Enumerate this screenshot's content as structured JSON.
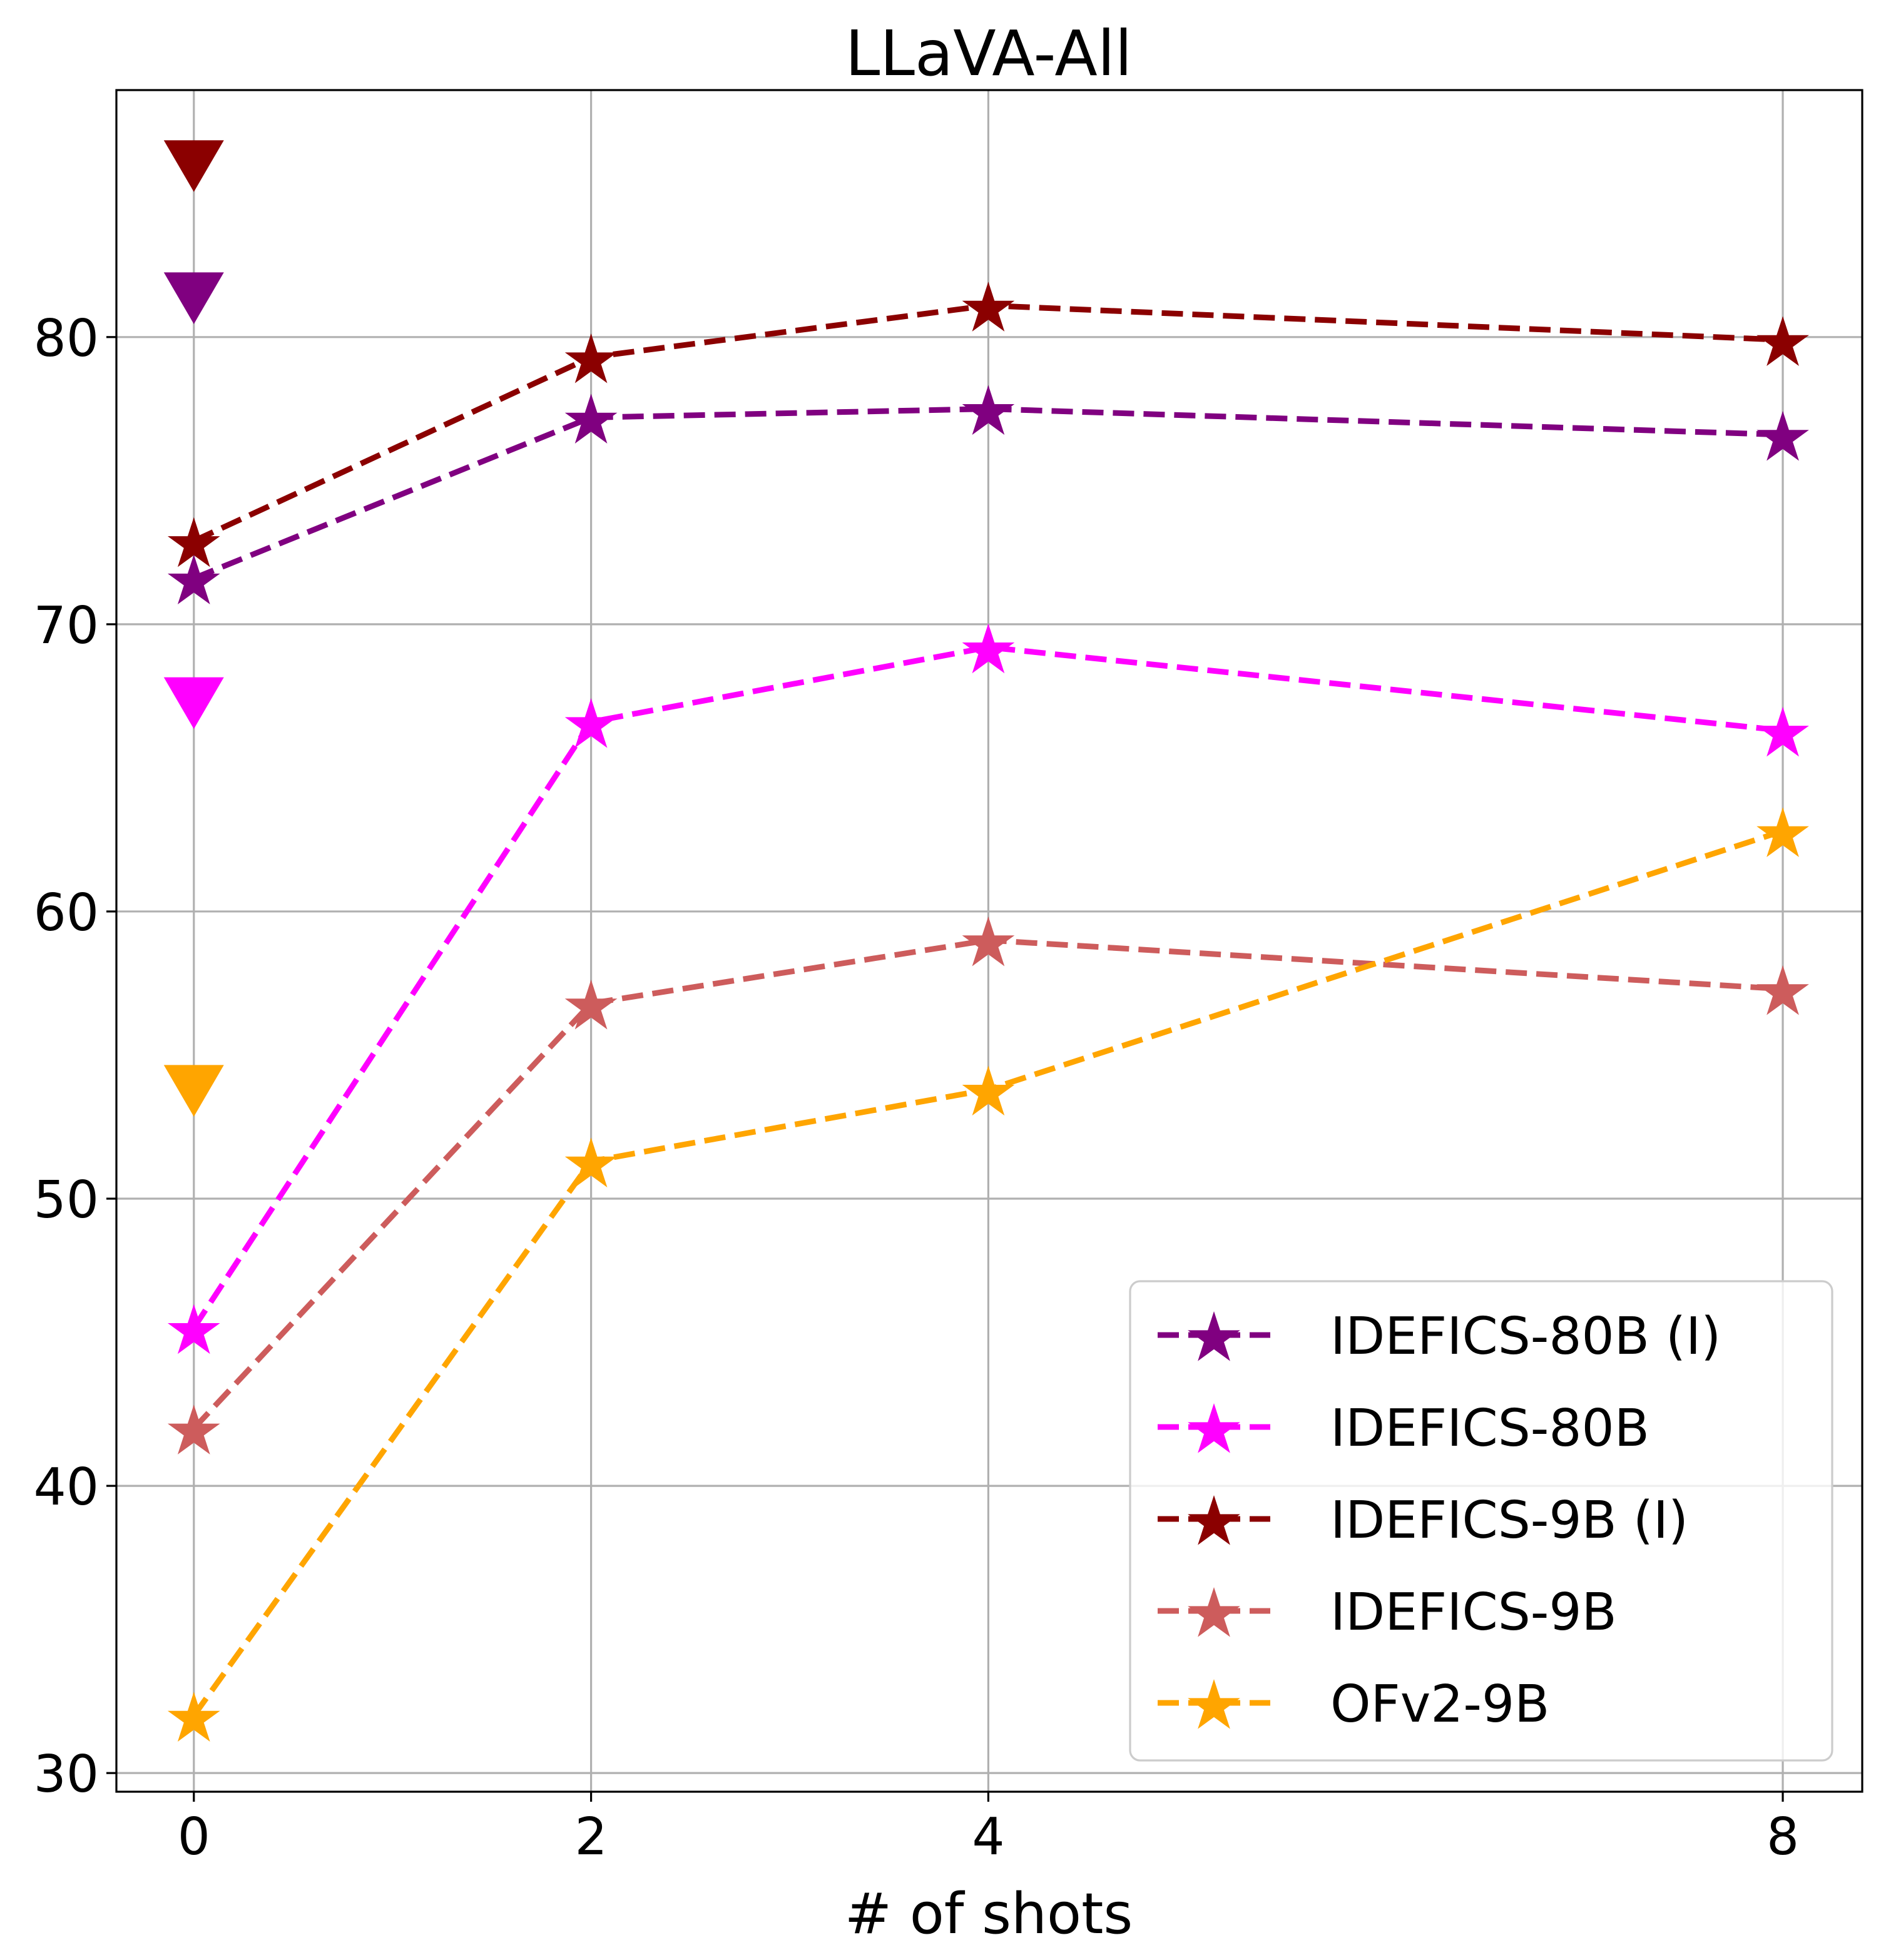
{
  "chart_data": {
    "type": "line",
    "title": "LLaVA-All",
    "xlabel": "# of shots",
    "ylabel": "",
    "x": [
      0,
      2,
      4,
      8
    ],
    "xticks": [
      0,
      2,
      4,
      8
    ],
    "xtick_labels": [
      "0",
      "2",
      "4",
      "8"
    ],
    "yticks": [
      30,
      40,
      50,
      60,
      70,
      80
    ],
    "ytick_labels": [
      "30",
      "40",
      "50",
      "60",
      "70",
      "80"
    ],
    "xlim": [
      -0.39,
      8.4
    ],
    "ylim": [
      29.35,
      88.6
    ],
    "grid": true,
    "legend_position": "lower-right",
    "series": [
      {
        "name": "IDEFICS-80B (I)",
        "color": "#800080",
        "marker": "star",
        "linestyle": "dashed",
        "values": [
          71.6,
          77.2,
          77.5,
          76.6
        ]
      },
      {
        "name": "IDEFICS-80B",
        "color": "#FF00FF",
        "marker": "star",
        "linestyle": "dashed",
        "values": [
          45.5,
          66.6,
          69.2,
          66.3
        ]
      },
      {
        "name": "IDEFICS-9B (I)",
        "color": "#8B0000",
        "marker": "star",
        "linestyle": "dashed",
        "values": [
          72.9,
          79.3,
          81.1,
          79.9
        ]
      },
      {
        "name": "IDEFICS-9B",
        "color": "#CD5C5C",
        "marker": "star",
        "linestyle": "dashed",
        "values": [
          42.0,
          56.8,
          59.0,
          57.3
        ]
      },
      {
        "name": "OFv2-9B",
        "color": "#FFA500",
        "marker": "star",
        "linestyle": "dashed",
        "values": [
          32.0,
          51.3,
          53.8,
          62.8
        ]
      }
    ],
    "extra_points": [
      {
        "series": "IDEFICS-9B (I)",
        "color": "#8B0000",
        "marker": "triangle-down",
        "x": 0,
        "y": 86.1
      },
      {
        "series": "IDEFICS-80B (I)",
        "color": "#800080",
        "marker": "triangle-down",
        "x": 0,
        "y": 81.5
      },
      {
        "series": "IDEFICS-80B",
        "color": "#FF00FF",
        "marker": "triangle-down",
        "x": 0,
        "y": 67.4
      },
      {
        "series": "OFv2-9B",
        "color": "#FFA500",
        "marker": "triangle-down",
        "x": 0,
        "y": 53.9
      }
    ]
  }
}
